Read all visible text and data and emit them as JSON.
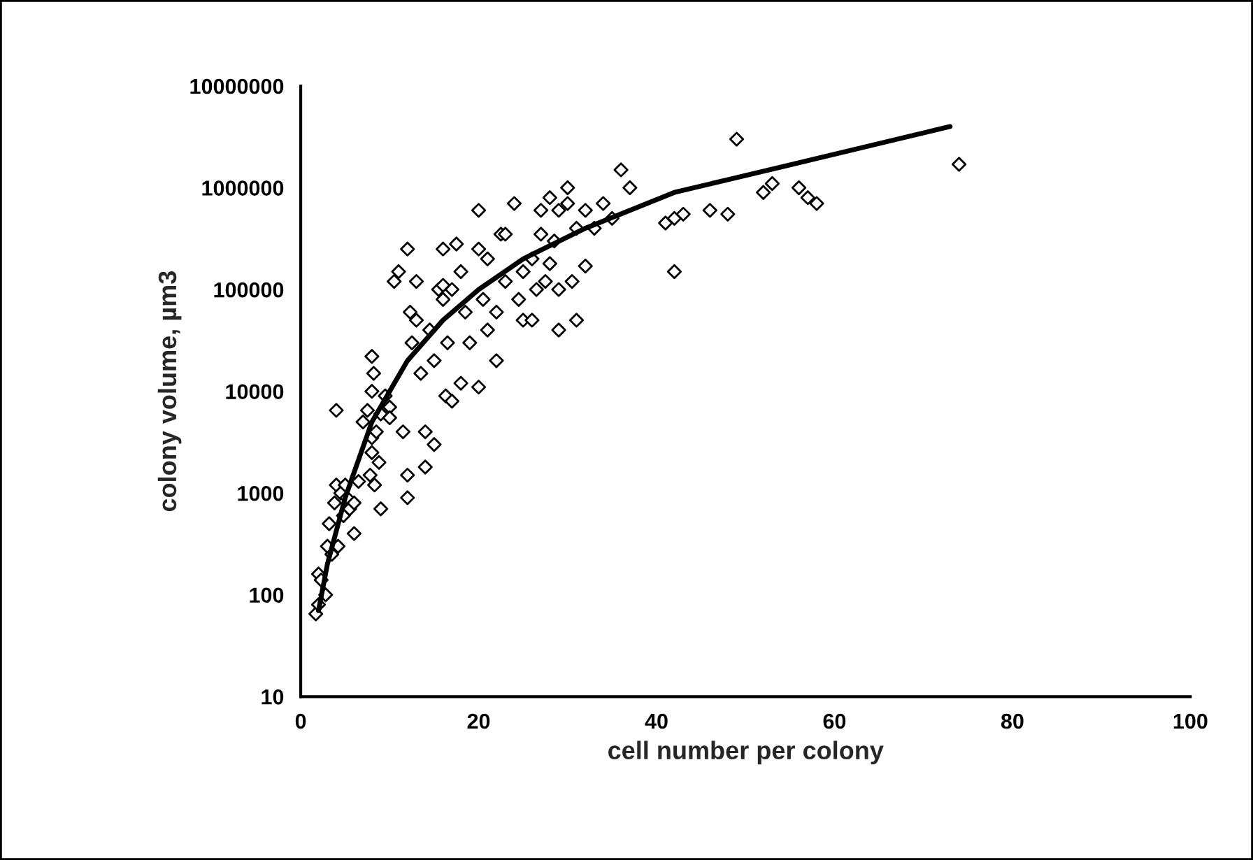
{
  "chart_data": {
    "type": "scatter",
    "xlabel": "cell number per colony",
    "ylabel": "colony volume, µm3",
    "log": "y",
    "xlim": [
      0,
      100
    ],
    "xticks": [
      0,
      20,
      40,
      60,
      80,
      100
    ],
    "ylim": [
      10,
      10000000
    ],
    "yticks": [
      10,
      100,
      1000,
      10000,
      100000,
      1000000,
      10000000
    ],
    "grid": false,
    "legend": false,
    "series": [
      {
        "marker": "diamond",
        "color": "#000000",
        "x": [
          1.7,
          2,
          2,
          2.3,
          2.8,
          3,
          3.2,
          3.5,
          3.8,
          4,
          4,
          4.2,
          4.5,
          4.8,
          5,
          5.2,
          5.5,
          6,
          6,
          6.5,
          7,
          7.5,
          7.8,
          8,
          8,
          8,
          8,
          8.2,
          8.3,
          8.5,
          8.8,
          9,
          9,
          9.5,
          10,
          10,
          10.5,
          11,
          11.5,
          12,
          12,
          12,
          12.3,
          12.5,
          13,
          13,
          13.5,
          14,
          14,
          14.5,
          15,
          15,
          15.5,
          16,
          16,
          16,
          16.3,
          16.5,
          17,
          17,
          17.5,
          18,
          18,
          18.5,
          19,
          20,
          20,
          20,
          20.5,
          21,
          21,
          22,
          22,
          22.5,
          23,
          23,
          24,
          24.5,
          25,
          25,
          26,
          26,
          26.5,
          27,
          27,
          27.5,
          28,
          28,
          28.5,
          29,
          29,
          29,
          30,
          30,
          30.5,
          31,
          31,
          32,
          32,
          33,
          34,
          35,
          36,
          37,
          41,
          42,
          42,
          43,
          46,
          48,
          49,
          52,
          53,
          56,
          57,
          58,
          74
        ],
        "values": [
          65,
          80,
          160,
          140,
          100,
          300,
          500,
          250,
          800,
          1200,
          6500,
          300,
          1000,
          600,
          1200,
          900,
          700,
          800,
          400,
          1300,
          5000,
          6500,
          1500,
          2500,
          3500,
          10000,
          22000,
          15000,
          1200,
          4000,
          2000,
          700,
          6000,
          9000,
          7000,
          5500,
          120000,
          150000,
          4000,
          250000,
          900,
          1500,
          60000,
          30000,
          120000,
          50000,
          15000,
          4000,
          1800,
          40000,
          20000,
          3000,
          100000,
          80000,
          110000,
          250000,
          9000,
          30000,
          8000,
          100000,
          280000,
          12000,
          150000,
          60000,
          30000,
          250000,
          11000,
          600000,
          80000,
          40000,
          200000,
          60000,
          20000,
          350000,
          350000,
          120000,
          700000,
          80000,
          150000,
          50000,
          50000,
          200000,
          100000,
          600000,
          350000,
          120000,
          800000,
          180000,
          300000,
          600000,
          100000,
          40000,
          1000000,
          700000,
          120000,
          400000,
          50000,
          600000,
          170000,
          400000,
          700000,
          500000,
          1500000,
          1000000,
          450000,
          500000,
          150000,
          550000,
          600000,
          550000,
          3000000,
          900000,
          1100000,
          1000000,
          800000,
          700000,
          1700000
        ]
      },
      {
        "type": "line",
        "marker": "none",
        "line_style": "solid",
        "color": "#000000",
        "x": [
          2,
          3,
          5,
          8,
          12,
          16,
          20,
          25,
          32,
          42,
          54,
          73
        ],
        "values": [
          70,
          200,
          900,
          5000,
          20000,
          50000,
          100000,
          200000,
          400000,
          900000,
          1600000,
          4000000
        ]
      }
    ]
  }
}
